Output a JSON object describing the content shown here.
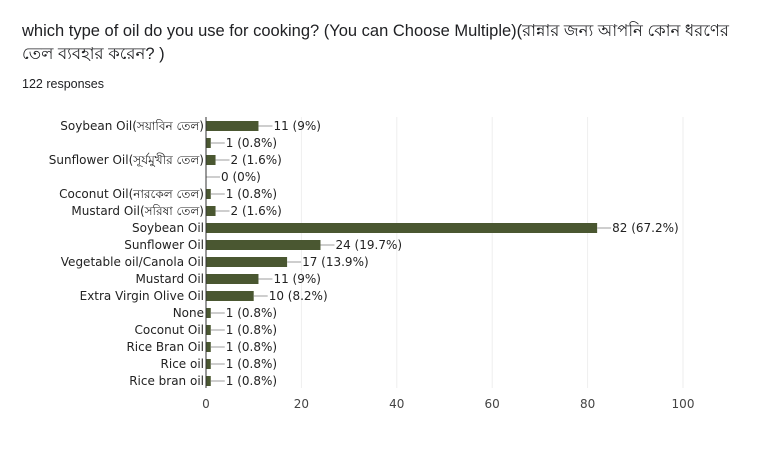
{
  "question": {
    "title": "which type of oil do you use for cooking? (You can Choose Multiple)(রান্নার জন্য আপনি কোন ধরণের তেল ব্যবহার করেন? )",
    "responses": "122 responses"
  },
  "chart_data": {
    "type": "bar",
    "orientation": "horizontal",
    "categories": [
      "Soybean Oil(সয়াবিন তেল)",
      "",
      "Sunflower Oil(সূর্যমুখীর তেল)",
      "",
      "Coconut Oil(নারকেল তেল)",
      "Mustard Oil(সরিষা তেল)",
      "Soybean Oil",
      "Sunflower Oil",
      "Vegetable oil/Canola Oil",
      "Mustard Oil",
      "Extra Virgin Olive Oil",
      "None",
      "Coconut Oil",
      "Rice Bran Oil",
      "Rice oil",
      "Rice bran oil"
    ],
    "values": [
      11,
      1,
      2,
      0,
      1,
      2,
      82,
      24,
      17,
      11,
      10,
      1,
      1,
      1,
      1,
      1
    ],
    "data_labels": [
      "11 (9%)",
      "1 (0.8%)",
      "2 (1.6%)",
      "0 (0%)",
      "1 (0.8%)",
      "2 (1.6%)",
      "82 (67.2%)",
      "24 (19.7%)",
      "17 (13.9%)",
      "11 (9%)",
      "10 (8.2%)",
      "1 (0.8%)",
      "1 (0.8%)",
      "1 (0.8%)",
      "1 (0.8%)",
      "1 (0.8%)"
    ],
    "xlim": [
      0,
      100
    ],
    "xticks": [
      "0",
      "20",
      "40",
      "60",
      "80",
      "100"
    ],
    "grid": true,
    "bar_color": "#4a5731",
    "leader_color": "#9e9e9e",
    "grid_color": "#eeeeee",
    "axis_color": "#333333"
  }
}
